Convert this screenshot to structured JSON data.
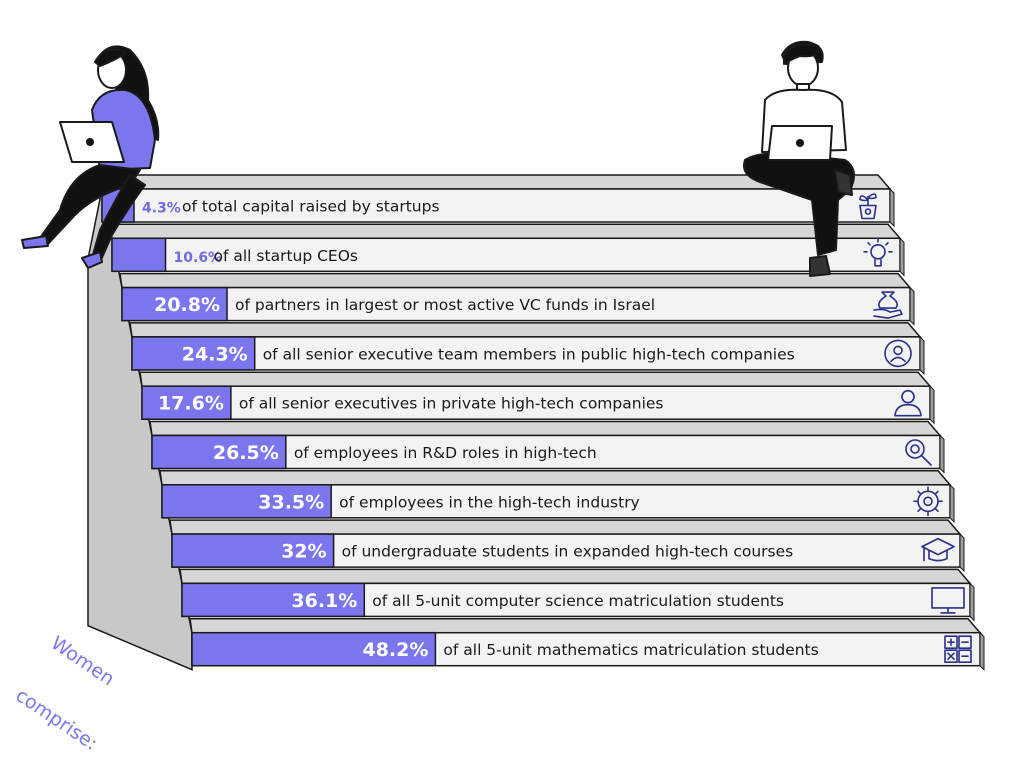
{
  "side_label": {
    "line1": "Women",
    "line2": "comprise:"
  },
  "colors": {
    "accent": "#7b76ee",
    "accent_text": "#6f6be0",
    "step_face": "#f3f3f3",
    "step_shadow": "#bdbdbd",
    "outline": "#1a1a1a",
    "icon": "#2a2f8a"
  },
  "chart_data": {
    "type": "bar",
    "orientation": "horizontal",
    "title": "",
    "xlabel": "",
    "ylabel": "",
    "xlim": [
      0,
      100
    ],
    "values": [
      4.3,
      10.6,
      20.8,
      24.3,
      17.6,
      26.5,
      33.5,
      32,
      36.1,
      48.2
    ],
    "value_labels": [
      "4.3%",
      "10.6%",
      "20.8%",
      "24.3%",
      "17.6%",
      "26.5%",
      "33.5%",
      "32%",
      "36.1%",
      "48.2%"
    ],
    "categories": [
      "of total capital raised by startups",
      "of all startup CEOs",
      "of partners in largest or most active VC funds in Israel",
      "of all senior executive team members in public high-tech companies",
      "of all senior executives in private high-tech companies",
      "of employees in R&D roles in high-tech",
      "of employees in the high-tech industry",
      "of undergraduate students in expanded high-tech courses",
      "of all 5-unit computer science matriculation students",
      "of all 5-unit mathematics matriculation students"
    ],
    "icons": [
      "plant-pot-icon",
      "lightbulb-icon",
      "money-bag-hand-icon",
      "user-circle-icon",
      "user-icon",
      "gear-magnifier-icon",
      "gear-icon",
      "graduation-cap-icon",
      "monitor-icon",
      "calculator-icon"
    ]
  }
}
